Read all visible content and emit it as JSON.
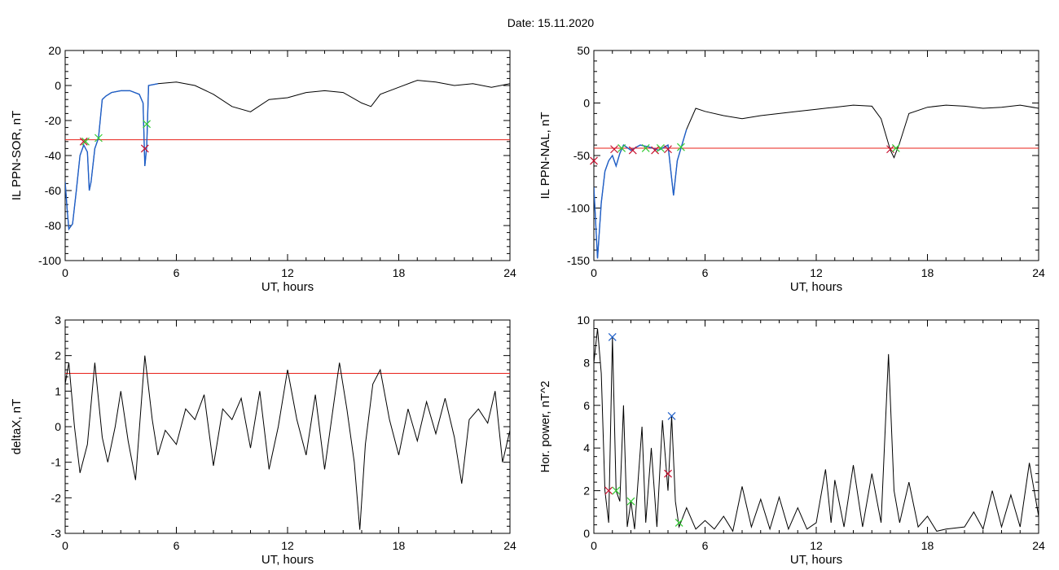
{
  "figure_title": "Date:  15.11.2020",
  "colors": {
    "trace": "#000000",
    "highlight": "#1f5fc8",
    "threshold": "#e8201a",
    "marker_red": "#c8102e",
    "marker_green": "#33cc33",
    "marker_blue": "#1f5fc8"
  },
  "chart_data": [
    {
      "id": "sor",
      "type": "line",
      "ylabel": "IL PPN-SOR, nT",
      "xlabel": "UT, hours",
      "xlim": [
        0,
        24
      ],
      "ylim": [
        -100,
        20
      ],
      "xticks": [
        0,
        6,
        12,
        18,
        24
      ],
      "yticks": [
        -100,
        -80,
        -60,
        -40,
        -20,
        0,
        20
      ],
      "threshold": -31,
      "series": [
        {
          "values": [
            [
              0,
              -55
            ],
            [
              0.1,
              -70
            ],
            [
              0.2,
              -82
            ],
            [
              0.4,
              -79
            ],
            [
              0.6,
              -60
            ],
            [
              0.8,
              -40
            ],
            [
              1.0,
              -34
            ],
            [
              1.2,
              -38
            ],
            [
              1.3,
              -60
            ],
            [
              1.4,
              -55
            ],
            [
              1.6,
              -36
            ],
            [
              1.8,
              -30
            ],
            [
              2.0,
              -8
            ],
            [
              2.2,
              -6
            ],
            [
              2.5,
              -4
            ],
            [
              3.0,
              -3
            ],
            [
              3.5,
              -3
            ],
            [
              4.0,
              -5
            ],
            [
              4.2,
              -10
            ],
            [
              4.3,
              -46
            ],
            [
              4.4,
              -35
            ],
            [
              4.5,
              0
            ],
            [
              5,
              1
            ],
            [
              6,
              2
            ],
            [
              7,
              0
            ],
            [
              8,
              -5
            ],
            [
              9,
              -12
            ],
            [
              10,
              -15
            ],
            [
              11,
              -8
            ],
            [
              12,
              -7
            ],
            [
              13,
              -4
            ],
            [
              14,
              -3
            ],
            [
              15,
              -4
            ],
            [
              16,
              -10
            ],
            [
              16.5,
              -12
            ],
            [
              17,
              -5
            ],
            [
              18,
              -1
            ],
            [
              19,
              3
            ],
            [
              20,
              2
            ],
            [
              21,
              0
            ],
            [
              22,
              1
            ],
            [
              23,
              -1
            ],
            [
              24,
              1
            ]
          ]
        }
      ],
      "markers": [
        {
          "x": 1.0,
          "y": -32,
          "color": "red"
        },
        {
          "x": 1.1,
          "y": -32,
          "color": "green"
        },
        {
          "x": 1.8,
          "y": -30,
          "color": "green"
        },
        {
          "x": 4.3,
          "y": -36,
          "color": "red"
        },
        {
          "x": 4.4,
          "y": -22,
          "color": "green"
        }
      ]
    },
    {
      "id": "nal",
      "type": "line",
      "ylabel": "IL PPN-NAL, nT",
      "xlabel": "UT, hours",
      "xlim": [
        0,
        24
      ],
      "ylim": [
        -150,
        50
      ],
      "xticks": [
        0,
        6,
        12,
        18,
        24
      ],
      "yticks": [
        -150,
        -100,
        -50,
        0,
        50
      ],
      "threshold": -43,
      "series": [
        {
          "values": [
            [
              0,
              -80
            ],
            [
              0.2,
              -148
            ],
            [
              0.4,
              -95
            ],
            [
              0.6,
              -65
            ],
            [
              0.8,
              -55
            ],
            [
              1.0,
              -50
            ],
            [
              1.2,
              -60
            ],
            [
              1.4,
              -48
            ],
            [
              1.6,
              -40
            ],
            [
              2.0,
              -45
            ],
            [
              2.5,
              -40
            ],
            [
              3.0,
              -42
            ],
            [
              3.5,
              -45
            ],
            [
              4.0,
              -40
            ],
            [
              4.3,
              -88
            ],
            [
              4.5,
              -55
            ],
            [
              5.0,
              -25
            ],
            [
              5.5,
              -5
            ],
            [
              6,
              -8
            ],
            [
              7,
              -12
            ],
            [
              8,
              -15
            ],
            [
              9,
              -12
            ],
            [
              10,
              -10
            ],
            [
              11,
              -8
            ],
            [
              12,
              -6
            ],
            [
              13,
              -4
            ],
            [
              14,
              -2
            ],
            [
              15,
              -3
            ],
            [
              15.5,
              -15
            ],
            [
              16,
              -45
            ],
            [
              16.2,
              -52
            ],
            [
              16.5,
              -38
            ],
            [
              17,
              -10
            ],
            [
              18,
              -4
            ],
            [
              19,
              -2
            ],
            [
              20,
              -3
            ],
            [
              21,
              -5
            ],
            [
              22,
              -4
            ],
            [
              23,
              -2
            ],
            [
              24,
              -5
            ]
          ]
        }
      ],
      "markers": [
        {
          "x": 0.0,
          "y": -55,
          "color": "red"
        },
        {
          "x": 1.1,
          "y": -44,
          "color": "red"
        },
        {
          "x": 1.5,
          "y": -43,
          "color": "green"
        },
        {
          "x": 2.1,
          "y": -45,
          "color": "red"
        },
        {
          "x": 2.8,
          "y": -43,
          "color": "green"
        },
        {
          "x": 3.3,
          "y": -45,
          "color": "red"
        },
        {
          "x": 3.6,
          "y": -43,
          "color": "green"
        },
        {
          "x": 4.0,
          "y": -44,
          "color": "red"
        },
        {
          "x": 4.7,
          "y": -42,
          "color": "green"
        },
        {
          "x": 16.0,
          "y": -44,
          "color": "red"
        },
        {
          "x": 16.3,
          "y": -43,
          "color": "green"
        }
      ]
    },
    {
      "id": "deltax",
      "type": "line",
      "ylabel": "deltaX, nT",
      "xlabel": "UT, hours",
      "xlim": [
        0,
        24
      ],
      "ylim": [
        -3,
        3
      ],
      "xticks": [
        0,
        6,
        12,
        18,
        24
      ],
      "yticks": [
        -3,
        -2,
        -1,
        0,
        1,
        2,
        3
      ],
      "threshold": 1.5,
      "series": [
        {
          "values": [
            [
              0,
              1.2
            ],
            [
              0.2,
              1.8
            ],
            [
              0.5,
              0
            ],
            [
              0.8,
              -1.3
            ],
            [
              1.2,
              -0.5
            ],
            [
              1.6,
              1.8
            ],
            [
              2.0,
              -0.3
            ],
            [
              2.3,
              -1.0
            ],
            [
              2.7,
              0
            ],
            [
              3.0,
              1.0
            ],
            [
              3.4,
              -0.4
            ],
            [
              3.8,
              -1.5
            ],
            [
              4.3,
              2.0
            ],
            [
              4.7,
              0.2
            ],
            [
              5.0,
              -0.8
            ],
            [
              5.4,
              -0.1
            ],
            [
              6.0,
              -0.5
            ],
            [
              6.5,
              0.5
            ],
            [
              7.0,
              0.2
            ],
            [
              7.5,
              0.9
            ],
            [
              8.0,
              -1.1
            ],
            [
              8.5,
              0.5
            ],
            [
              9.0,
              0.2
            ],
            [
              9.5,
              0.8
            ],
            [
              10.0,
              -0.6
            ],
            [
              10.5,
              1.0
            ],
            [
              11.0,
              -1.2
            ],
            [
              11.5,
              0.0
            ],
            [
              12.0,
              1.6
            ],
            [
              12.5,
              0.2
            ],
            [
              13.0,
              -0.8
            ],
            [
              13.5,
              0.9
            ],
            [
              14.0,
              -1.2
            ],
            [
              14.4,
              0.3
            ],
            [
              14.8,
              1.8
            ],
            [
              15.2,
              0.5
            ],
            [
              15.6,
              -1.0
            ],
            [
              15.9,
              -2.9
            ],
            [
              16.2,
              -0.5
            ],
            [
              16.6,
              1.2
            ],
            [
              17.0,
              1.6
            ],
            [
              17.5,
              0.2
            ],
            [
              18.0,
              -0.8
            ],
            [
              18.5,
              0.5
            ],
            [
              19.0,
              -0.4
            ],
            [
              19.5,
              0.7
            ],
            [
              20.0,
              -0.2
            ],
            [
              20.5,
              0.8
            ],
            [
              21.0,
              -0.3
            ],
            [
              21.4,
              -1.6
            ],
            [
              21.8,
              0.2
            ],
            [
              22.3,
              0.5
            ],
            [
              22.8,
              0.1
            ],
            [
              23.2,
              1.0
            ],
            [
              23.6,
              -1.0
            ],
            [
              24,
              -0.1
            ]
          ]
        }
      ],
      "markers": []
    },
    {
      "id": "power",
      "type": "line",
      "ylabel": "Hor. power, nT^2",
      "xlabel": "UT, hours",
      "xlim": [
        0,
        24
      ],
      "ylim": [
        0,
        10
      ],
      "xticks": [
        0,
        6,
        12,
        18,
        24
      ],
      "yticks": [
        0,
        2,
        4,
        6,
        8,
        10
      ],
      "series": [
        {
          "values": [
            [
              0,
              8
            ],
            [
              0.2,
              9.6
            ],
            [
              0.4,
              7.5
            ],
            [
              0.6,
              2.0
            ],
            [
              0.8,
              0.5
            ],
            [
              1.0,
              9.2
            ],
            [
              1.2,
              2.0
            ],
            [
              1.4,
              1.5
            ],
            [
              1.6,
              6.0
            ],
            [
              1.8,
              0.3
            ],
            [
              2.0,
              1.5
            ],
            [
              2.2,
              0.2
            ],
            [
              2.6,
              5.0
            ],
            [
              2.8,
              0.5
            ],
            [
              3.1,
              4.0
            ],
            [
              3.4,
              0.3
            ],
            [
              3.7,
              5.3
            ],
            [
              4.0,
              2.0
            ],
            [
              4.2,
              5.5
            ],
            [
              4.4,
              1.5
            ],
            [
              4.6,
              0.3
            ],
            [
              5.0,
              1.2
            ],
            [
              5.5,
              0.2
            ],
            [
              6,
              0.6
            ],
            [
              6.5,
              0.2
            ],
            [
              7,
              0.8
            ],
            [
              7.5,
              0.1
            ],
            [
              8.0,
              2.2
            ],
            [
              8.5,
              0.3
            ],
            [
              9,
              1.6
            ],
            [
              9.5,
              0.2
            ],
            [
              10,
              1.7
            ],
            [
              10.5,
              0.2
            ],
            [
              11,
              1.2
            ],
            [
              11.5,
              0.2
            ],
            [
              12,
              0.5
            ],
            [
              12.5,
              3.0
            ],
            [
              12.8,
              0.5
            ],
            [
              13,
              2.5
            ],
            [
              13.5,
              0.3
            ],
            [
              14,
              3.2
            ],
            [
              14.5,
              0.3
            ],
            [
              15,
              2.8
            ],
            [
              15.5,
              0.5
            ],
            [
              15.9,
              8.4
            ],
            [
              16.2,
              2.0
            ],
            [
              16.5,
              0.5
            ],
            [
              17,
              2.4
            ],
            [
              17.5,
              0.3
            ],
            [
              18,
              0.8
            ],
            [
              18.5,
              0.1
            ],
            [
              19,
              0.2
            ],
            [
              20,
              0.3
            ],
            [
              20.5,
              1.0
            ],
            [
              21,
              0.2
            ],
            [
              21.5,
              2.0
            ],
            [
              22,
              0.3
            ],
            [
              22.5,
              1.8
            ],
            [
              23,
              0.3
            ],
            [
              23.5,
              3.3
            ],
            [
              24,
              0.8
            ]
          ]
        }
      ],
      "markers": [
        {
          "x": 1.0,
          "y": 9.2,
          "color": "blue"
        },
        {
          "x": 0.8,
          "y": 2.0,
          "color": "red"
        },
        {
          "x": 1.2,
          "y": 2.0,
          "color": "green"
        },
        {
          "x": 2.0,
          "y": 1.5,
          "color": "green"
        },
        {
          "x": 4.2,
          "y": 5.5,
          "color": "blue"
        },
        {
          "x": 4.0,
          "y": 2.8,
          "color": "red"
        },
        {
          "x": 4.6,
          "y": 0.5,
          "color": "green"
        }
      ]
    }
  ]
}
